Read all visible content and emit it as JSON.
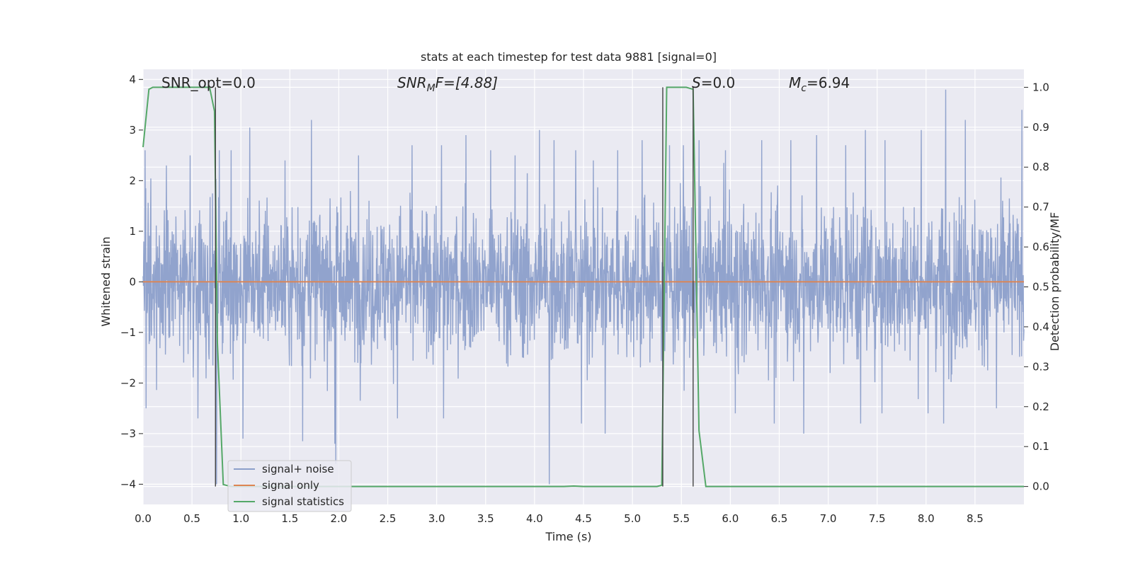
{
  "chart_data": {
    "type": "line",
    "title": "stats at each timestep for test data 9881 [signal=0]",
    "xlabel": "Time (s)",
    "ylabel": "Whitened strain",
    "y2label": "Detection probability/MF",
    "xlim": [
      0,
      9.0
    ],
    "ylim": [
      -4.4,
      4.2
    ],
    "y2lim": [
      -0.045,
      1.045
    ],
    "xticks": [
      "0.0",
      "0.5",
      "1.0",
      "1.5",
      "2.0",
      "2.5",
      "3.0",
      "3.5",
      "4.0",
      "4.5",
      "5.0",
      "5.5",
      "6.0",
      "6.5",
      "7.0",
      "7.5",
      "8.0",
      "8.5"
    ],
    "yticks": [
      "4",
      "3",
      "2",
      "1",
      "0",
      "−1",
      "−2",
      "−3",
      "−4"
    ],
    "y2ticks": [
      "1.0",
      "0.9",
      "0.8",
      "0.7",
      "0.6",
      "0.5",
      "0.4",
      "0.3",
      "0.2",
      "0.1",
      "0.0"
    ],
    "grid": true,
    "legend_placement": "lower-left",
    "annotations": {
      "snr_opt": "SNR_opt=0.0",
      "snr_mf_main": "SNR",
      "snr_mf_sub": "M",
      "snr_mf_rest": "F=[4.88]",
      "s_main": "S",
      "s_rest": "=0.0",
      "mc_main": "M",
      "mc_sub": "c",
      "mc_rest": "=6.94"
    },
    "series": [
      {
        "name": "signal+ noise",
        "color": "#8c9fca",
        "description_values": "whitened noise, roughly within ±2.5 with spikes up to ~3.8 and down to ~-4",
        "spikes_up": [
          [
            0.02,
            2.6
          ],
          [
            0.24,
            2.3
          ],
          [
            0.48,
            2.5
          ],
          [
            0.78,
            2.6
          ],
          [
            0.9,
            2.6
          ],
          [
            1.09,
            3.05
          ],
          [
            1.45,
            2.4
          ],
          [
            1.72,
            3.2
          ],
          [
            2.2,
            2.5
          ],
          [
            2.75,
            2.7
          ],
          [
            3.05,
            2.7
          ],
          [
            3.3,
            2.9
          ],
          [
            3.55,
            2.6
          ],
          [
            3.8,
            2.5
          ],
          [
            4.05,
            3.0
          ],
          [
            4.2,
            2.8
          ],
          [
            4.42,
            2.6
          ],
          [
            4.6,
            2.4
          ],
          [
            4.85,
            2.6
          ],
          [
            5.1,
            2.8
          ],
          [
            5.38,
            2.7
          ],
          [
            5.52,
            2.7
          ],
          [
            5.68,
            2.8
          ],
          [
            5.95,
            2.6
          ],
          [
            6.32,
            2.8
          ],
          [
            6.62,
            2.8
          ],
          [
            6.88,
            2.9
          ],
          [
            7.18,
            2.7
          ],
          [
            7.38,
            3.0
          ],
          [
            7.58,
            2.8
          ],
          [
            7.95,
            3.0
          ],
          [
            8.2,
            3.8
          ],
          [
            8.4,
            3.2
          ],
          [
            8.72,
            2.6
          ],
          [
            8.98,
            3.4
          ]
        ],
        "spikes_down": [
          [
            0.03,
            -2.5
          ],
          [
            0.56,
            -2.7
          ],
          [
            0.75,
            -4.0
          ],
          [
            1.02,
            -3.1
          ],
          [
            1.63,
            -3.15
          ],
          [
            1.96,
            -3.2
          ],
          [
            1.97,
            -3.6
          ],
          [
            2.6,
            -2.7
          ],
          [
            3.07,
            -2.7
          ],
          [
            4.15,
            -4.0
          ],
          [
            4.48,
            -2.8
          ],
          [
            4.72,
            -3.0
          ],
          [
            5.31,
            -2.2
          ],
          [
            6.05,
            -2.6
          ],
          [
            6.45,
            -2.8
          ],
          [
            6.75,
            -3.0
          ],
          [
            7.33,
            -2.8
          ],
          [
            7.55,
            -2.6
          ],
          [
            8.02,
            -2.6
          ],
          [
            8.18,
            -2.8
          ],
          [
            8.72,
            -2.5
          ]
        ]
      },
      {
        "name": "signal only",
        "color": "#dd8452",
        "x": [
          0,
          9.0
        ],
        "y": [
          0,
          0
        ]
      },
      {
        "name": "signal statistics",
        "color": "#55a868",
        "axis": "right",
        "x": [
          0.0,
          0.06,
          0.1,
          0.2,
          0.3,
          0.4,
          0.5,
          0.6,
          0.68,
          0.73,
          0.76,
          0.82,
          0.9,
          1.0,
          1.5,
          2.0,
          2.5,
          3.0,
          3.5,
          4.0,
          4.3,
          4.4,
          4.5,
          5.0,
          5.25,
          5.3,
          5.35,
          5.4,
          5.45,
          5.5,
          5.55,
          5.62,
          5.68,
          5.75,
          6.0,
          7.0,
          8.0,
          9.0
        ],
        "y": [
          0.85,
          0.995,
          1.0,
          1.0,
          1.0,
          1.0,
          1.0,
          1.0,
          1.0,
          0.94,
          0.36,
          0.005,
          0.0,
          0.0,
          0.0,
          0.0,
          0.0,
          0.0,
          0.0,
          0.0,
          0.0,
          0.001,
          0.0,
          0.0,
          0.0,
          0.003,
          1.0,
          1.0,
          1.0,
          1.0,
          1.0,
          0.995,
          0.14,
          0.0,
          0.0,
          0.0,
          0.0,
          0.0
        ]
      }
    ],
    "vlines": [
      0.74,
      5.31,
      5.62
    ]
  }
}
